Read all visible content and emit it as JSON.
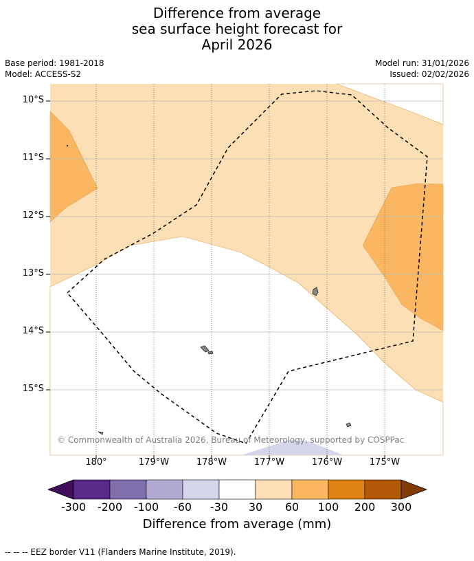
{
  "title": {
    "line1": "Difference from average",
    "line2": "sea surface height forecast for",
    "line3": "April 2026"
  },
  "meta": {
    "base_period": "Base period: 1981-2018",
    "model": "Model: ACCESS-S2",
    "model_run": "Model run: 31/01/2026",
    "issued": "Issued: 02/02/2026"
  },
  "map": {
    "lat_labels": [
      "10°S",
      "11°S",
      "12°S",
      "13°S",
      "14°S",
      "15°S"
    ],
    "lon_labels": [
      "180°",
      "179°W",
      "178°W",
      "177°W",
      "176°W",
      "175°W"
    ],
    "copyright": "© Commonwealth of Australia 2026, Bureau of Meteorology, supported by COSPPac"
  },
  "legend": {
    "ticks": [
      "-300",
      "-200",
      "-100",
      "-60",
      "-30",
      "30",
      "60",
      "100",
      "200",
      "300"
    ],
    "colors": [
      "#3f0d5c",
      "#5a2a8a",
      "#7f70ad",
      "#b1a9d1",
      "#d5d6ea",
      "#ffffff",
      "#fddfb5",
      "#fbb661",
      "#e08214",
      "#b35806",
      "#7f3b08"
    ],
    "title": "Difference from average (mm)"
  },
  "footer": {
    "eez_note": "--  --  -- EEZ border V11 (Flanders Marine Institute, 2019)."
  }
}
